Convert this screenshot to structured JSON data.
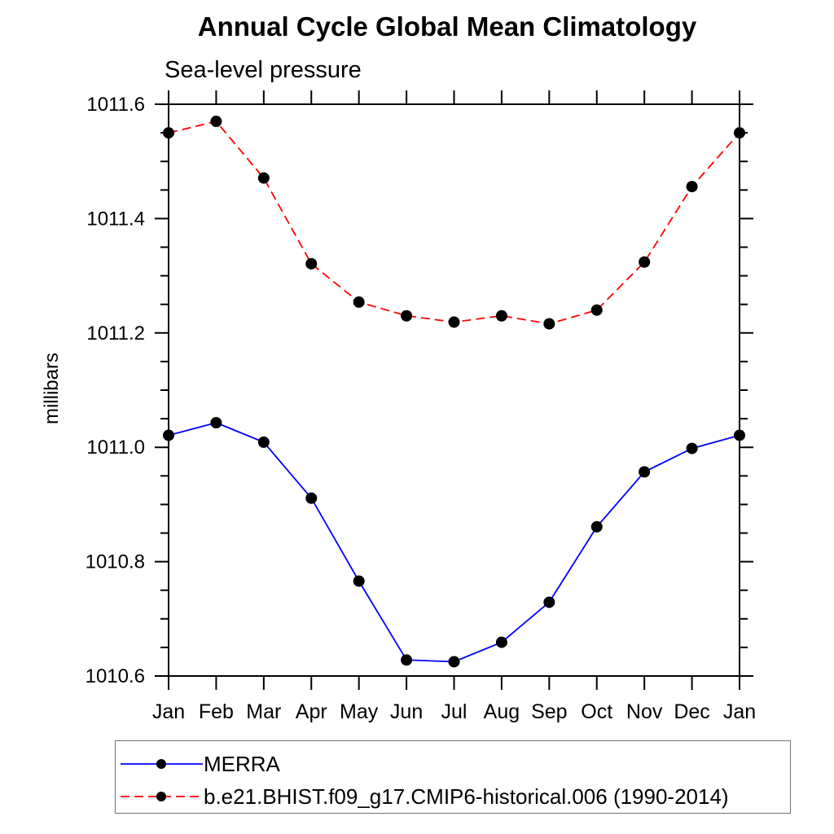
{
  "chart_data": {
    "type": "line",
    "title": "Annual Cycle Global Mean Climatology",
    "subtitle": "Sea-level pressure",
    "ylabel": "millibars",
    "xlabel": "",
    "x_labels": [
      "Jan",
      "Feb",
      "Mar",
      "Apr",
      "May",
      "Jun",
      "Jul",
      "Aug",
      "Sep",
      "Oct",
      "Nov",
      "Dec",
      "Jan"
    ],
    "ylim": [
      1010.6,
      1011.6
    ],
    "ytick_major_step": 0.2,
    "ytick_minor_step": 0.05,
    "ytick_labels": [
      "1010.6",
      "1010.8",
      "1011.0",
      "1011.2",
      "1011.4",
      "1011.6"
    ],
    "grid": false,
    "legend_position": "bottom-left",
    "axis_color": "#000000",
    "background_color": "#ffffff",
    "series": [
      {
        "name": "MERRA",
        "color": "#0000ff",
        "line_style": "solid",
        "marker": "filled-circle",
        "marker_color": "#000000",
        "values": [
          1011.021,
          1011.043,
          1011.009,
          1010.911,
          1010.766,
          1010.628,
          1010.625,
          1010.659,
          1010.729,
          1010.861,
          1010.957,
          1010.998,
          1011.021
        ]
      },
      {
        "name": "b.e21.BHIST.f09_g17.CMIP6-historical.006 (1990-2014)",
        "color": "#ff0000",
        "line_style": "dashed",
        "marker": "filled-circle",
        "marker_color": "#000000",
        "values": [
          1011.55,
          1011.57,
          1011.471,
          1011.321,
          1011.254,
          1011.23,
          1011.219,
          1011.23,
          1011.216,
          1011.24,
          1011.324,
          1011.456,
          1011.55
        ]
      }
    ]
  }
}
